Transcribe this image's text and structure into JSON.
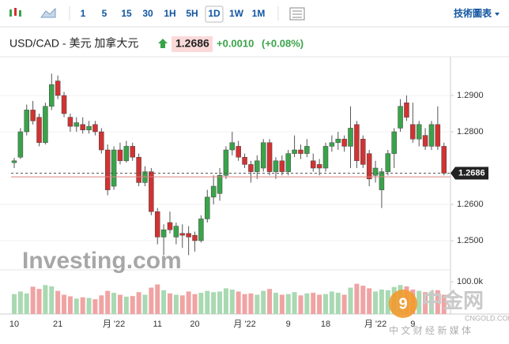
{
  "toolbar": {
    "intervals": [
      "1",
      "5",
      "15",
      "30",
      "1H",
      "5H",
      "1D",
      "1W",
      "1M"
    ],
    "active": "1D",
    "chart_link": "技術圖表"
  },
  "header": {
    "title": "USD/CAD - 美元 加拿大元",
    "price": "1.2686",
    "change": "+0.0010",
    "change_pct": "(+0.08%)"
  },
  "watermark": {
    "brand": "Investing.com",
    "logo": "中金网",
    "logo_site": "CNGOLD.COM",
    "logo_tagline": "中 文 财 经 新 媒 体"
  },
  "chart_data": {
    "type": "candlestick",
    "up_color": "#3aa34a",
    "down_color": "#d23232",
    "volume_up_color": "#a9d9b2",
    "volume_down_color": "#f0a3a3",
    "categories": [
      "10",
      null,
      null,
      null,
      null,
      null,
      null,
      "21",
      null,
      null,
      null,
      null,
      null,
      null,
      null,
      null,
      "月 '22",
      null,
      null,
      null,
      null,
      null,
      null,
      "11",
      null,
      null,
      null,
      null,
      null,
      "20",
      null,
      null,
      null,
      null,
      null,
      null,
      null,
      "月 '22",
      null,
      null,
      null,
      null,
      null,
      null,
      "9",
      null,
      null,
      null,
      null,
      null,
      "18",
      null,
      null,
      null,
      null,
      null,
      null,
      null,
      "月 '22",
      null,
      null,
      null,
      null,
      null,
      "9",
      null,
      null,
      null,
      null,
      null
    ],
    "ohlc": [
      [
        1.2715,
        1.2728,
        1.27,
        1.272
      ],
      [
        1.273,
        1.281,
        1.2725,
        1.28
      ],
      [
        1.28,
        1.2875,
        1.279,
        1.286
      ],
      [
        1.286,
        1.2885,
        1.282,
        1.283
      ],
      [
        1.284,
        1.285,
        1.276,
        1.277
      ],
      [
        1.277,
        1.288,
        1.2765,
        1.287
      ],
      [
        1.287,
        1.296,
        1.286,
        1.293
      ],
      [
        1.294,
        1.2955,
        1.289,
        1.29
      ],
      [
        1.29,
        1.291,
        1.284,
        1.285
      ],
      [
        1.284,
        1.285,
        1.28,
        1.2815
      ],
      [
        1.2815,
        1.284,
        1.28,
        1.2825
      ],
      [
        1.282,
        1.284,
        1.2795,
        1.2805
      ],
      [
        1.2805,
        1.283,
        1.2795,
        1.2815
      ],
      [
        1.282,
        1.283,
        1.279,
        1.28
      ],
      [
        1.28,
        1.281,
        1.274,
        1.275
      ],
      [
        1.275,
        1.2765,
        1.2625,
        1.264
      ],
      [
        1.265,
        1.276,
        1.264,
        1.275
      ],
      [
        1.275,
        1.277,
        1.271,
        1.272
      ],
      [
        1.272,
        1.2775,
        1.2715,
        1.276
      ],
      [
        1.276,
        1.277,
        1.272,
        1.273
      ],
      [
        1.273,
        1.274,
        1.265,
        1.266
      ],
      [
        1.266,
        1.2705,
        1.265,
        1.269
      ],
      [
        1.269,
        1.27,
        1.257,
        1.258
      ],
      [
        1.258,
        1.259,
        1.249,
        1.251
      ],
      [
        1.251,
        1.2545,
        1.246,
        1.253
      ],
      [
        1.255,
        1.258,
        1.252,
        1.253
      ],
      [
        1.251,
        1.255,
        1.249,
        1.254
      ],
      [
        1.252,
        1.2545,
        1.248,
        1.2515
      ],
      [
        1.252,
        1.254,
        1.246,
        1.251
      ],
      [
        1.2515,
        1.2525,
        1.247,
        1.25
      ],
      [
        1.25,
        1.257,
        1.2495,
        1.256
      ],
      [
        1.256,
        1.264,
        1.255,
        1.262
      ],
      [
        1.262,
        1.268,
        1.26,
        1.265
      ],
      [
        1.263,
        1.27,
        1.261,
        1.268
      ],
      [
        1.268,
        1.276,
        1.267,
        1.275
      ],
      [
        1.275,
        1.28,
        1.2735,
        1.277
      ],
      [
        1.276,
        1.2775,
        1.272,
        1.273
      ],
      [
        1.273,
        1.274,
        1.27,
        1.271
      ],
      [
        1.271,
        1.272,
        1.266,
        1.269
      ],
      [
        1.269,
        1.2735,
        1.267,
        1.272
      ],
      [
        1.27,
        1.278,
        1.269,
        1.277
      ],
      [
        1.277,
        1.278,
        1.268,
        1.269
      ],
      [
        1.269,
        1.273,
        1.267,
        1.272
      ],
      [
        1.272,
        1.2735,
        1.268,
        1.269
      ],
      [
        1.269,
        1.275,
        1.268,
        1.274
      ],
      [
        1.274,
        1.279,
        1.273,
        1.275
      ],
      [
        1.275,
        1.2765,
        1.2725,
        1.274
      ],
      [
        1.274,
        1.278,
        1.273,
        1.276
      ],
      [
        1.272,
        1.274,
        1.269,
        1.27
      ],
      [
        1.271,
        1.2725,
        1.268,
        1.27
      ],
      [
        1.27,
        1.277,
        1.269,
        1.276
      ],
      [
        1.276,
        1.279,
        1.2745,
        1.277
      ],
      [
        1.277,
        1.28,
        1.275,
        1.278
      ],
      [
        1.278,
        1.279,
        1.2745,
        1.276
      ],
      [
        1.276,
        1.287,
        1.27,
        1.281
      ],
      [
        1.282,
        1.283,
        1.27,
        1.272
      ],
      [
        1.278,
        1.279,
        1.27,
        1.271
      ],
      [
        1.274,
        1.275,
        1.265,
        1.267
      ],
      [
        1.268,
        1.272,
        1.266,
        1.27
      ],
      [
        1.264,
        1.27,
        1.259,
        1.269
      ],
      [
        1.269,
        1.275,
        1.268,
        1.274
      ],
      [
        1.274,
        1.281,
        1.27,
        1.28
      ],
      [
        1.281,
        1.289,
        1.28,
        1.287
      ],
      [
        1.288,
        1.29,
        1.283,
        1.284
      ],
      [
        1.282,
        1.288,
        1.277,
        1.278
      ],
      [
        1.278,
        1.283,
        1.276,
        1.282
      ],
      [
        1.279,
        1.281,
        1.275,
        1.276
      ],
      [
        1.276,
        1.283,
        1.275,
        1.282
      ],
      [
        1.282,
        1.287,
        1.275,
        1.276
      ],
      [
        1.276,
        1.277,
        1.268,
        1.2686
      ]
    ],
    "volumes": [
      62000,
      70000,
      64000,
      85000,
      78000,
      90000,
      86000,
      72000,
      60000,
      55000,
      48000,
      52000,
      50000,
      46000,
      58000,
      72000,
      66000,
      60000,
      54000,
      56000,
      68000,
      60000,
      82000,
      92000,
      74000,
      64000,
      60000,
      58000,
      70000,
      62000,
      66000,
      72000,
      68000,
      70000,
      80000,
      76000,
      70000,
      62000,
      64000,
      60000,
      72000,
      78000,
      66000,
      60000,
      62000,
      68000,
      58000,
      64000,
      66000,
      60000,
      62000,
      70000,
      66000,
      60000,
      82000,
      94000,
      88000,
      80000,
      70000,
      76000,
      74000,
      84000,
      90000,
      86000,
      76000,
      72000,
      68000,
      70000,
      74000,
      60000
    ],
    "ylim": [
      1.2424,
      1.3
    ],
    "yticks": [
      {
        "value": 1.29,
        "label": "1.2900"
      },
      {
        "value": 1.28,
        "label": "1.2800"
      },
      {
        "value": 1.26,
        "label": "1.2600"
      },
      {
        "value": 1.25,
        "label": "1.2500"
      }
    ],
    "volume_ylim": [
      0,
      130000
    ],
    "volume_ticks": [
      {
        "value": 100000,
        "label": "100.0k"
      }
    ],
    "last_price": 1.2686,
    "prev_close": 1.2676,
    "grid": true
  }
}
